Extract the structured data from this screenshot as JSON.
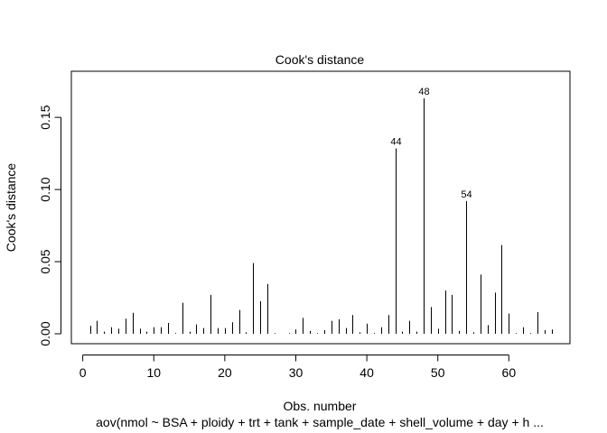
{
  "chart_data": {
    "type": "bar",
    "title": "Cook's distance",
    "xlabel": "Obs. number",
    "ylabel": "Cook's distance",
    "subtitle": "aov(nmol ~ BSA + ploidy + trt + tank + sample_date + shell_volume + day + h ...",
    "xlim": [
      1,
      66
    ],
    "ylim": [
      0,
      0.1632
    ],
    "x_ticks": [
      0,
      10,
      20,
      30,
      40,
      50,
      60
    ],
    "y_ticks": [
      0.0,
      0.05,
      0.1,
      0.15
    ],
    "x_tick_labels": [
      "0",
      "10",
      "20",
      "30",
      "40",
      "50",
      "60"
    ],
    "y_tick_labels": [
      "0.00",
      "0.05",
      "0.10",
      "0.15"
    ],
    "grid": false,
    "x": [
      1,
      2,
      3,
      4,
      5,
      6,
      7,
      8,
      9,
      10,
      11,
      12,
      13,
      14,
      15,
      16,
      17,
      18,
      19,
      20,
      21,
      22,
      23,
      24,
      25,
      26,
      27,
      28,
      29,
      30,
      31,
      32,
      33,
      34,
      35,
      36,
      37,
      38,
      39,
      40,
      41,
      42,
      43,
      44,
      45,
      46,
      47,
      48,
      49,
      50,
      51,
      52,
      53,
      54,
      55,
      56,
      57,
      58,
      59,
      60,
      61,
      62,
      63,
      64,
      65,
      66
    ],
    "values": [
      0.0055,
      0.009,
      0.0015,
      0.0045,
      0.0035,
      0.0105,
      0.0145,
      0.0035,
      0.0015,
      0.0045,
      0.0045,
      0.0075,
      0.0005,
      0.0215,
      0.0015,
      0.0065,
      0.004,
      0.027,
      0.004,
      0.004,
      0.008,
      0.0165,
      0.001,
      0.049,
      0.0225,
      0.0345,
      0.0005,
      0.0,
      0.0005,
      0.003,
      0.011,
      0.002,
      0.0005,
      0.0025,
      0.009,
      0.01,
      0.004,
      0.013,
      0.001,
      0.007,
      0.0005,
      0.0045,
      0.013,
      0.1285,
      0.0015,
      0.009,
      0.0015,
      0.1632,
      0.0185,
      0.0035,
      0.03,
      0.027,
      0.002,
      0.092,
      0.001,
      0.041,
      0.006,
      0.0285,
      0.0615,
      0.014,
      0.0005,
      0.0045,
      0.0005,
      0.015,
      0.0025,
      0.003
    ],
    "labeled_points": [
      {
        "x": 44,
        "label": "44"
      },
      {
        "x": 48,
        "label": "48"
      },
      {
        "x": 54,
        "label": "54"
      }
    ]
  }
}
